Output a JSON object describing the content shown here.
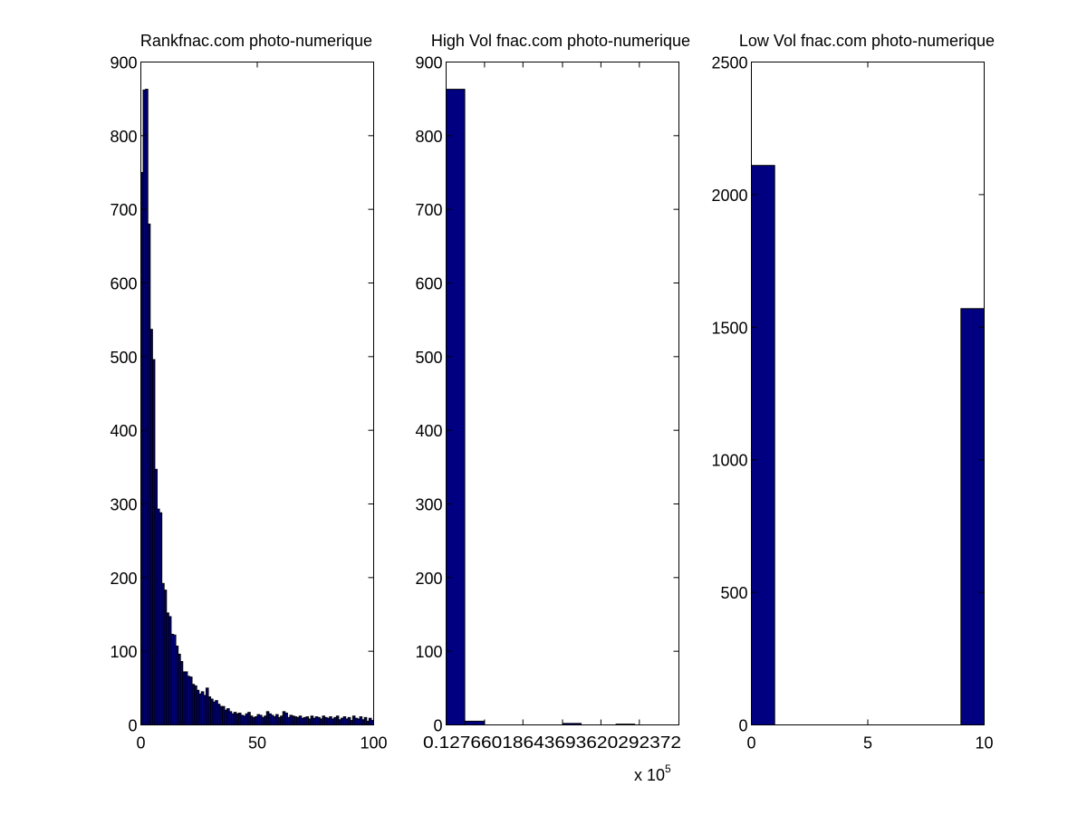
{
  "chart_data": [
    {
      "type": "bar",
      "title": "Rankfnac.com photo-numerique",
      "xlim": [
        0,
        100
      ],
      "ylim": [
        0,
        900
      ],
      "xticks": [
        "0",
        "50",
        "100"
      ],
      "yticks": [
        "0",
        "100",
        "200",
        "300",
        "400",
        "500",
        "600",
        "700",
        "800",
        "900"
      ],
      "bar_width": 1,
      "x": [
        1,
        2,
        3,
        4,
        5,
        6,
        7,
        8,
        9,
        10,
        11,
        12,
        13,
        14,
        15,
        16,
        17,
        18,
        19,
        20,
        21,
        22,
        23,
        24,
        25,
        26,
        27,
        28,
        29,
        30,
        31,
        32,
        33,
        34,
        35,
        36,
        37,
        38,
        39,
        40,
        41,
        42,
        43,
        44,
        45,
        46,
        47,
        48,
        49,
        50,
        51,
        52,
        53,
        54,
        55,
        56,
        57,
        58,
        59,
        60,
        61,
        62,
        63,
        64,
        65,
        66,
        67,
        68,
        69,
        70,
        71,
        72,
        73,
        74,
        75,
        76,
        77,
        78,
        79,
        80,
        81,
        82,
        83,
        84,
        85,
        86,
        87,
        88,
        89,
        90,
        91,
        92,
        93,
        94,
        95,
        96,
        97,
        98,
        99,
        100
      ],
      "values": [
        750,
        862,
        863,
        680,
        537,
        496,
        347,
        293,
        288,
        192,
        183,
        152,
        147,
        123,
        122,
        107,
        96,
        86,
        72,
        72,
        66,
        65,
        55,
        53,
        47,
        42,
        45,
        40,
        50,
        38,
        35,
        31,
        33,
        28,
        25,
        25,
        20,
        22,
        18,
        15,
        17,
        15,
        16,
        13,
        12,
        15,
        17,
        12,
        10,
        11,
        14,
        13,
        10,
        12,
        18,
        15,
        13,
        11,
        14,
        10,
        12,
        18,
        16,
        10,
        13,
        12,
        11,
        10,
        12,
        9,
        10,
        11,
        8,
        12,
        9,
        11,
        10,
        8,
        12,
        10,
        9,
        11,
        8,
        10,
        12,
        7,
        9,
        11,
        8,
        10,
        6,
        12,
        9,
        8,
        11,
        7,
        10,
        5,
        9,
        6
      ]
    },
    {
      "type": "bar",
      "title": "High Vol fnac.com photo-numerique",
      "xlim": [
        0,
        2
      ],
      "ylim": [
        0,
        900
      ],
      "xtick_labels_overlapping": "0.12766018643693620292372",
      "x_multiplier": "x 10",
      "x_multiplier_exp": "5",
      "yticks": [
        "0",
        "100",
        "200",
        "300",
        "400",
        "500",
        "600",
        "700",
        "800",
        "900"
      ],
      "bars": [
        {
          "x0": 0.0,
          "x1": 0.16,
          "value": 863
        },
        {
          "x0": 0.16,
          "x1": 0.33,
          "value": 5
        },
        {
          "x0": 1.0,
          "x1": 1.16,
          "value": 2
        },
        {
          "x0": 1.46,
          "x1": 1.62,
          "value": 1
        }
      ]
    },
    {
      "type": "bar",
      "title": "Low Vol fnac.com photo-numerique",
      "xlim": [
        0,
        10
      ],
      "ylim": [
        0,
        2500
      ],
      "xticks": [
        "0",
        "5",
        "10"
      ],
      "yticks": [
        "0",
        "500",
        "1000",
        "1500",
        "2000",
        "2500"
      ],
      "bars": [
        {
          "x0": 0,
          "x1": 1,
          "value": 2110
        },
        {
          "x0": 9,
          "x1": 10,
          "value": 1570
        }
      ]
    }
  ]
}
